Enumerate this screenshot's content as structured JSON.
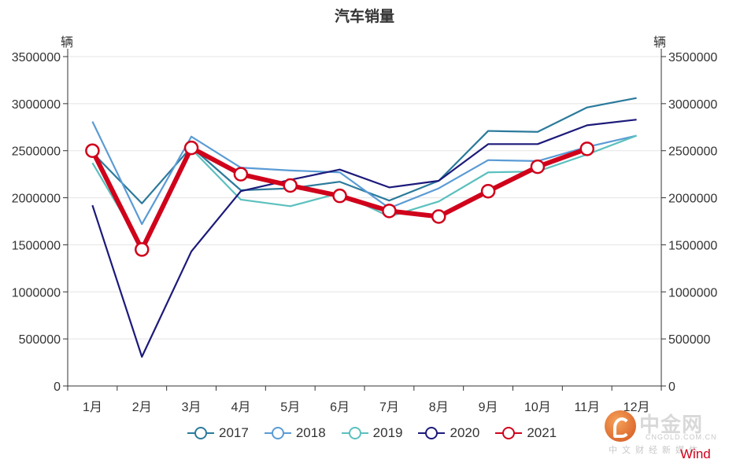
{
  "chart_data": {
    "type": "line",
    "title": "汽车销量",
    "ylabel_left": "辆",
    "ylabel_right": "辆",
    "categories": [
      "1月",
      "2月",
      "3月",
      "4月",
      "5月",
      "6月",
      "7月",
      "8月",
      "9月",
      "10月",
      "11月",
      "12月"
    ],
    "ylim": [
      0,
      3500000
    ],
    "yticks": [
      "0",
      "500000",
      "1000000",
      "1500000",
      "2000000",
      "2500000",
      "3000000",
      "3500000"
    ],
    "grid": true,
    "legend_position": "bottom",
    "series": [
      {
        "name": "2017",
        "color": "#2b7a9b",
        "values": [
          2480000,
          1940000,
          2540000,
          2080000,
          2100000,
          2170000,
          1970000,
          2180000,
          2710000,
          2700000,
          2960000,
          3060000
        ]
      },
      {
        "name": "2018",
        "color": "#5a9bd5",
        "values": [
          2810000,
          1720000,
          2650000,
          2320000,
          2290000,
          2270000,
          1890000,
          2100000,
          2400000,
          2390000,
          2540000,
          2660000
        ]
      },
      {
        "name": "2019",
        "color": "#5bc0be",
        "values": [
          2370000,
          1480000,
          2520000,
          1980000,
          1910000,
          2050000,
          1800000,
          1960000,
          2270000,
          2280000,
          2460000,
          2660000
        ]
      },
      {
        "name": "2020",
        "color": "#1c1a7a",
        "values": [
          1920000,
          310000,
          1430000,
          2070000,
          2190000,
          2300000,
          2110000,
          2180000,
          2570000,
          2570000,
          2770000,
          2830000
        ]
      },
      {
        "name": "2021",
        "color": "#d0021b",
        "values": [
          2500000,
          1450000,
          2530000,
          2250000,
          2130000,
          2020000,
          1860000,
          1800000,
          2070000,
          2330000,
          2520000,
          null
        ]
      }
    ]
  },
  "watermark": {
    "cn_name": "中金网",
    "domain": "CNGOLD.COM.CN",
    "tagline": "中文财经新媒体",
    "source": "Wind"
  }
}
